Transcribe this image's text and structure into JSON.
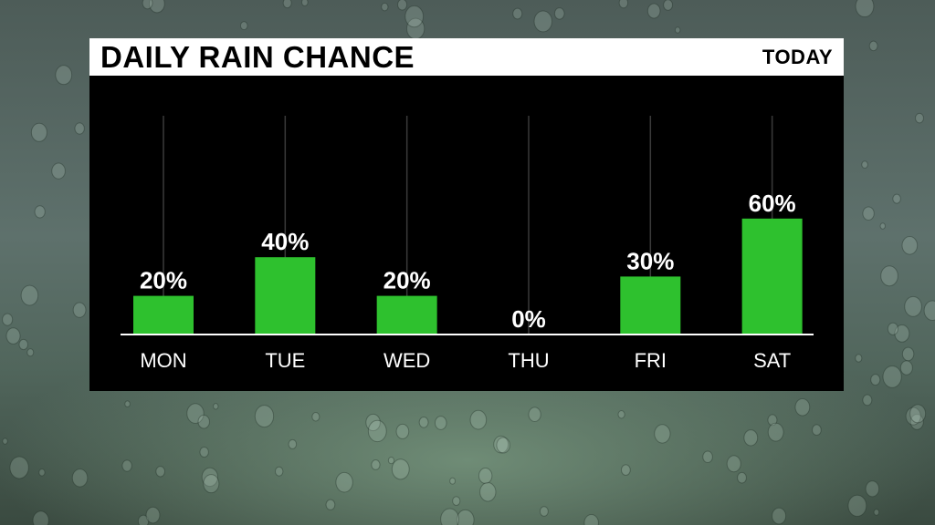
{
  "header": {
    "title": "DAILY RAIN CHANCE",
    "period": "TODAY"
  },
  "colors": {
    "bar": "#2ec12e",
    "panel": "#000000",
    "text": "#ffffff",
    "baseline": "#ffffff",
    "guide": "#3a3a3a"
  },
  "chart_data": {
    "type": "bar",
    "title": "DAILY RAIN CHANCE",
    "categories": [
      "MON",
      "TUE",
      "WED",
      "THU",
      "FRI",
      "SAT"
    ],
    "values": [
      20,
      40,
      20,
      0,
      30,
      60
    ],
    "value_labels": [
      "20%",
      "40%",
      "20%",
      "0%",
      "30%",
      "60%"
    ],
    "ylim": [
      0,
      100
    ],
    "grid": false,
    "legend": "none"
  }
}
